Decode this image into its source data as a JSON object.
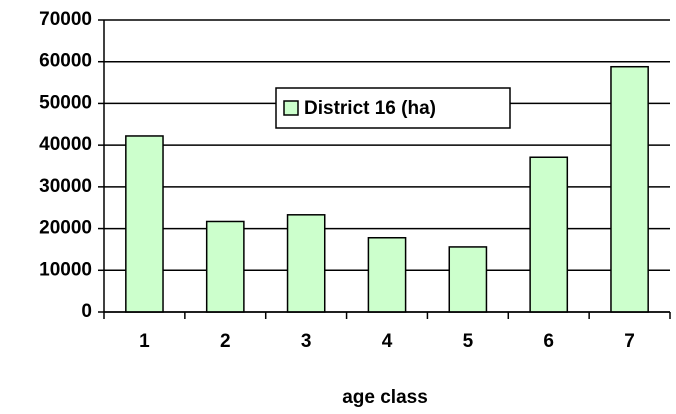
{
  "chart_data": {
    "type": "bar",
    "categories": [
      "1",
      "2",
      "3",
      "4",
      "5",
      "6",
      "7"
    ],
    "series": [
      {
        "name": "District 16 (ha)",
        "color": "#ccffcc",
        "values": [
          42200,
          21700,
          23300,
          17800,
          15600,
          37100,
          58800
        ]
      }
    ],
    "x_label": "age class",
    "ylim": [
      0,
      70000
    ],
    "yticks": [
      0,
      10000,
      20000,
      30000,
      40000,
      50000,
      60000,
      70000
    ],
    "grid": true,
    "legend": "top"
  }
}
